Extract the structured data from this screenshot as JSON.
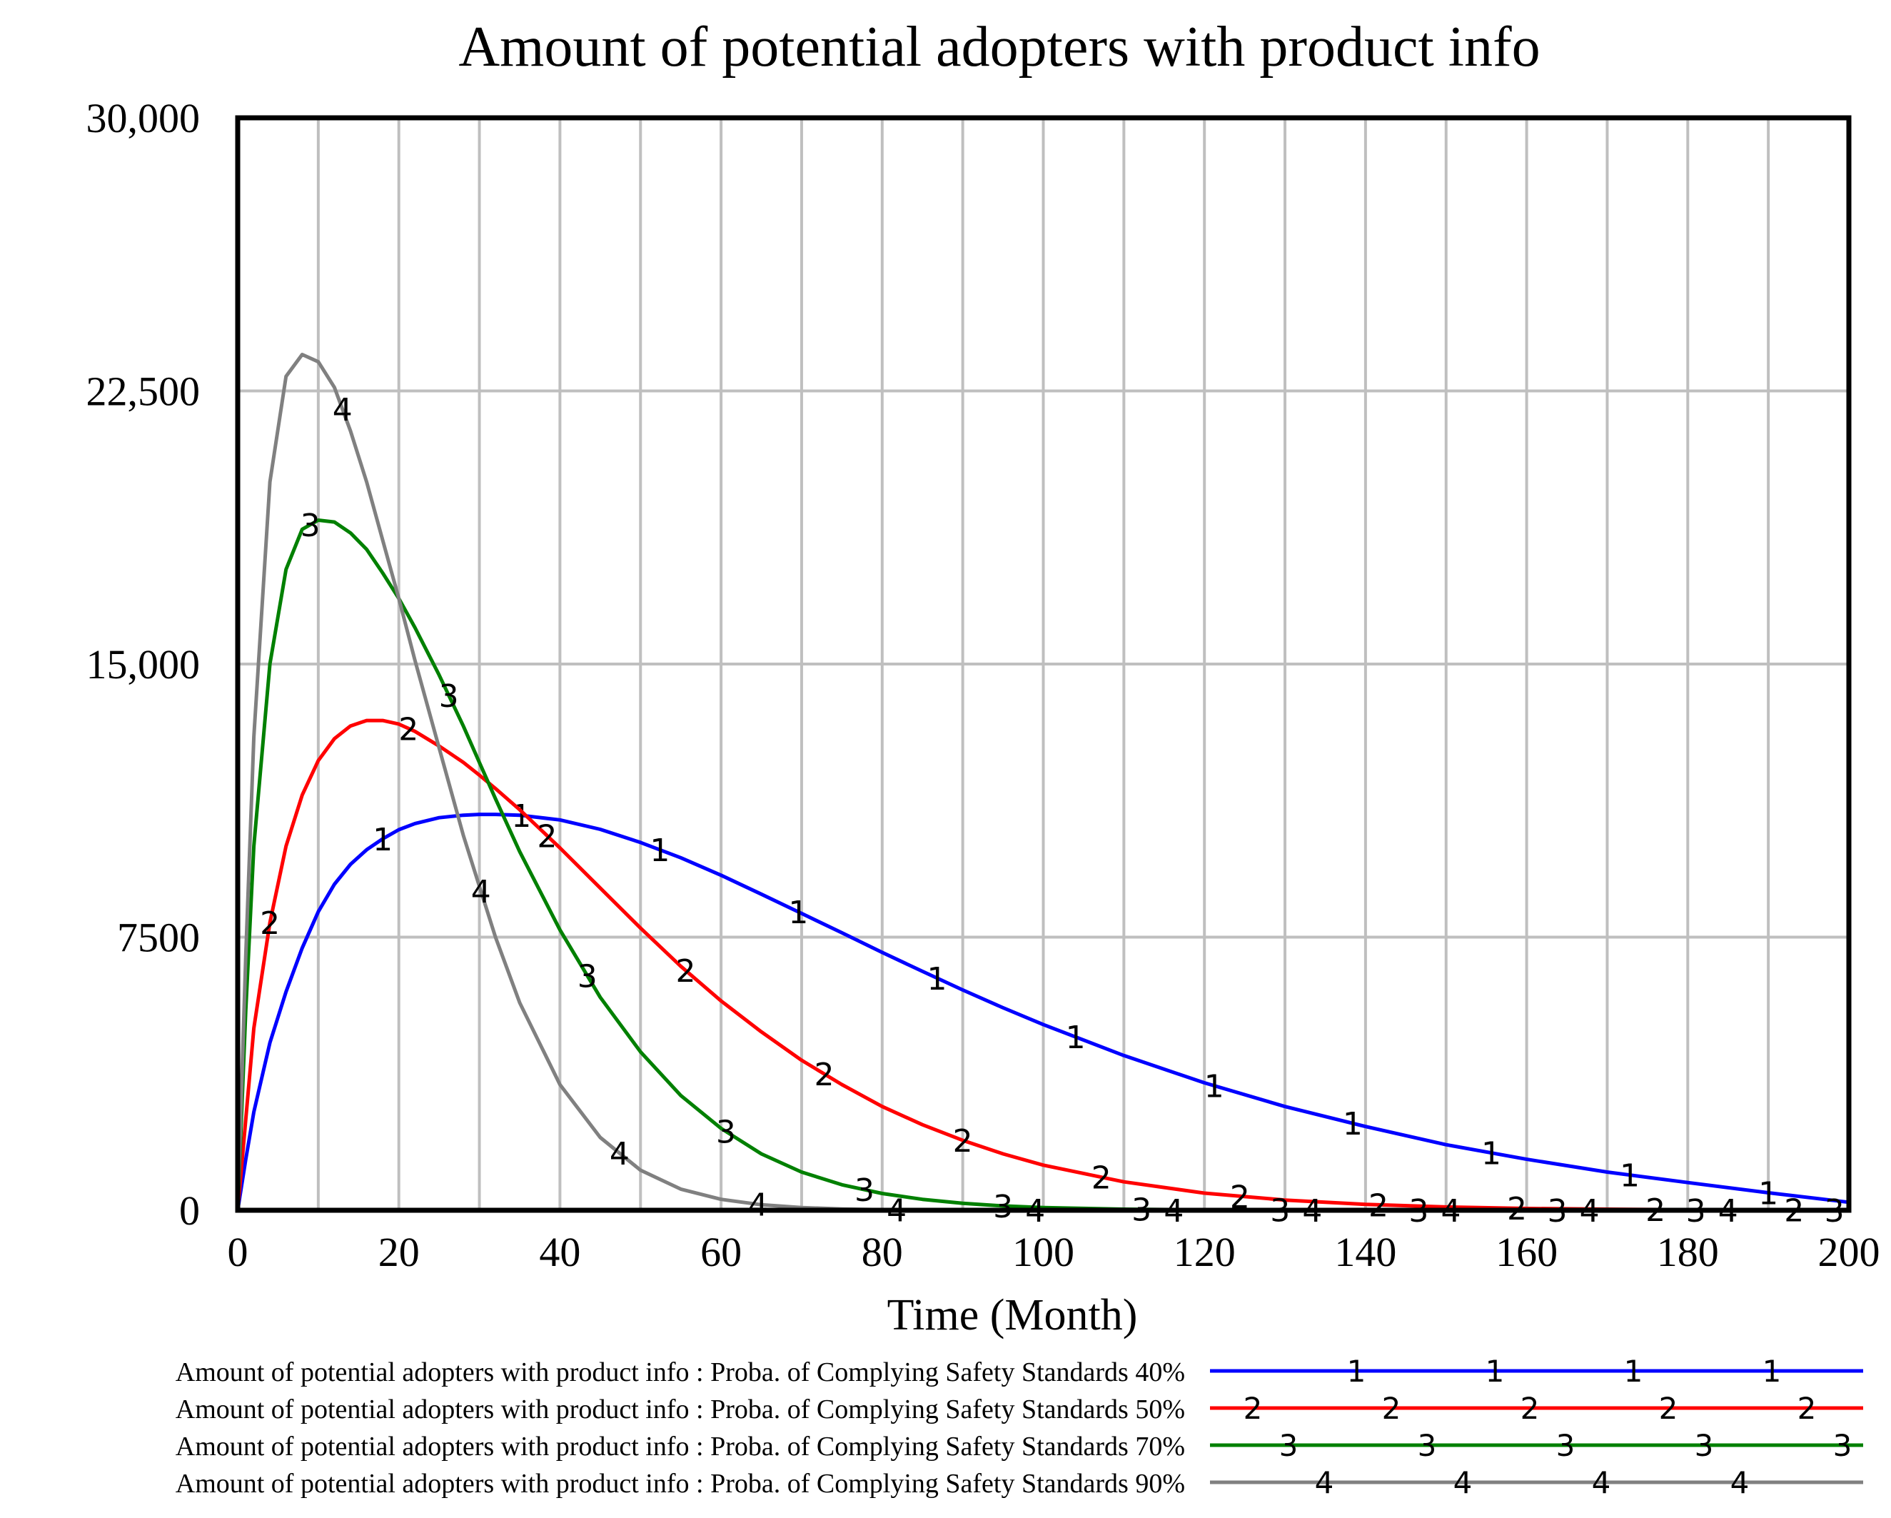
{
  "chart_data": {
    "type": "line",
    "title": "Amount of potential adopters with product info",
    "xlabel": "Time (Month)",
    "ylabel": "",
    "xlim": [
      0,
      200
    ],
    "ylim": [
      0,
      30000
    ],
    "grid": true,
    "legend_position": "bottom",
    "x_ticks": [
      0,
      20,
      40,
      60,
      80,
      100,
      120,
      140,
      160,
      180,
      200
    ],
    "x_tick_labels": [
      "0",
      "20",
      "40",
      "60",
      "80",
      "100",
      "120",
      "140",
      "160",
      "180",
      "200"
    ],
    "y_ticks": [
      0,
      7500,
      15000,
      22500,
      30000
    ],
    "y_tick_labels": [
      "0",
      "7500",
      "15,000",
      "22,500",
      "30,000"
    ],
    "x": [
      0,
      1,
      2,
      4,
      6,
      8,
      10,
      12,
      14,
      16,
      18,
      20,
      22,
      25,
      28,
      30,
      32,
      35,
      40,
      45,
      50,
      55,
      60,
      65,
      70,
      75,
      80,
      85,
      90,
      95,
      100,
      110,
      120,
      130,
      140,
      150,
      160,
      170,
      180,
      190,
      200
    ],
    "series": [
      {
        "name": "Amount of potential adopters with product info : Proba. of Complying Safety Standards 40%",
        "marker": "1",
        "color": "#0000ff",
        "values": [
          0,
          1400,
          2700,
          4600,
          6000,
          7200,
          8200,
          8950,
          9500,
          9900,
          10200,
          10450,
          10620,
          10780,
          10850,
          10870,
          10870,
          10850,
          10720,
          10460,
          10100,
          9680,
          9200,
          8680,
          8150,
          7620,
          7080,
          6560,
          6050,
          5560,
          5100,
          4250,
          3500,
          2850,
          2300,
          1800,
          1400,
          1050,
          760,
          480,
          220
        ]
      },
      {
        "name": "Amount of potential adopters with product info : Proba. of Complying Safety Standards 50%",
        "marker": "2",
        "color": "#ff0000",
        "values": [
          0,
          2500,
          5000,
          7900,
          10000,
          11400,
          12350,
          12950,
          13300,
          13450,
          13450,
          13350,
          13150,
          12750,
          12300,
          11950,
          11580,
          11000,
          9950,
          8850,
          7750,
          6700,
          5750,
          4900,
          4120,
          3450,
          2850,
          2350,
          1920,
          1550,
          1240,
          780,
          470,
          280,
          160,
          90,
          50,
          30,
          15,
          10,
          5
        ]
      },
      {
        "name": "Amount of potential adopters with product info : Proba. of Complying Safety Standards 70%",
        "marker": "3",
        "color": "#008000",
        "values": [
          0,
          5500,
          10000,
          15000,
          17600,
          18700,
          18950,
          18900,
          18600,
          18150,
          17500,
          16800,
          16000,
          14700,
          13300,
          12300,
          11300,
          9850,
          7700,
          5850,
          4350,
          3150,
          2250,
          1550,
          1050,
          700,
          460,
          300,
          190,
          120,
          75,
          30,
          12,
          5,
          3,
          2,
          1,
          1,
          0,
          0,
          0
        ]
      },
      {
        "name": "Amount of potential adopters with product info : Proba. of Complying Safety Standards 90%",
        "marker": "4",
        "color": "#808080",
        "values": [
          0,
          7000,
          13000,
          20000,
          22900,
          23500,
          23300,
          22600,
          21400,
          20000,
          18400,
          16800,
          15100,
          12700,
          10300,
          8900,
          7500,
          5700,
          3450,
          2000,
          1100,
          580,
          300,
          150,
          75,
          35,
          15,
          6,
          3,
          1,
          0,
          0,
          0,
          0,
          0,
          0,
          0,
          0,
          0,
          0,
          0
        ]
      }
    ]
  }
}
